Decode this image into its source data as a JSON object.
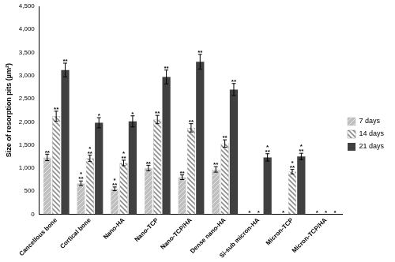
{
  "chart_data": {
    "type": "bar",
    "y_label": "Size of resorption pits (µm²)",
    "categories": [
      "Cancellous bone",
      "Cortical bone",
      "Nano-HA",
      "Nano-TCP",
      "Nano-TCP/HA",
      "Dense nano-HA",
      "Si-sub micron-HA",
      "Micron-TCP",
      "Micron-TCP/HA"
    ],
    "series": [
      {
        "name": "7 days",
        "color": "#bfbfbf",
        "values": [
          1230,
          670,
          550,
          1000,
          800,
          970,
          0,
          0,
          0
        ],
        "errors": [
          70,
          50,
          40,
          60,
          50,
          60,
          null,
          null,
          null
        ],
        "significance": [
          [
            "**"
          ],
          [
            "*",
            "**"
          ],
          [
            "*",
            "**"
          ],
          [
            "**"
          ],
          [
            "**"
          ],
          [
            "**"
          ],
          [
            "*"
          ],
          [
            "*"
          ],
          [
            "*"
          ]
        ]
      },
      {
        "name": "14 days",
        "color": "#8c8c8c",
        "values": [
          2120,
          1210,
          1110,
          2050,
          1870,
          1530,
          0,
          920,
          0
        ],
        "errors": [
          110,
          70,
          60,
          90,
          90,
          80,
          null,
          50,
          null
        ],
        "significance": [
          [
            "**"
          ],
          [
            "*",
            "**"
          ],
          [
            "*",
            "**"
          ],
          [
            "**"
          ],
          [
            "**"
          ],
          [
            "**"
          ],
          [
            "*"
          ],
          [
            "*",
            "**"
          ],
          [
            "*"
          ]
        ]
      },
      {
        "name": "21 days",
        "color": "#404040",
        "values": [
          3120,
          1980,
          2010,
          2970,
          3300,
          2700,
          1230,
          1250,
          0
        ],
        "errors": [
          150,
          110,
          120,
          150,
          160,
          130,
          80,
          70,
          null
        ],
        "significance": [
          [
            "**"
          ],
          [
            "*"
          ],
          [
            "*"
          ],
          [
            "**"
          ],
          [
            "**"
          ],
          [
            "**"
          ],
          [
            "*",
            "**"
          ],
          [
            "*",
            "**"
          ],
          [
            "*"
          ]
        ]
      }
    ],
    "ylim": [
      0,
      4500
    ],
    "yticks": [
      0,
      500,
      {
        "value": 1000,
        "label": "1,000"
      },
      {
        "value": 1500,
        "label": "1,500"
      },
      {
        "value": 2000,
        "label": "2,000"
      },
      {
        "value": 2500,
        "label": "2,500"
      },
      {
        "value": 3000,
        "label": "3,000"
      },
      {
        "value": 3500,
        "label": "3,500"
      },
      {
        "value": 4000,
        "label": "4,000"
      },
      {
        "value": 4500,
        "label": "4,500"
      }
    ],
    "grid": false,
    "legend": "right"
  }
}
